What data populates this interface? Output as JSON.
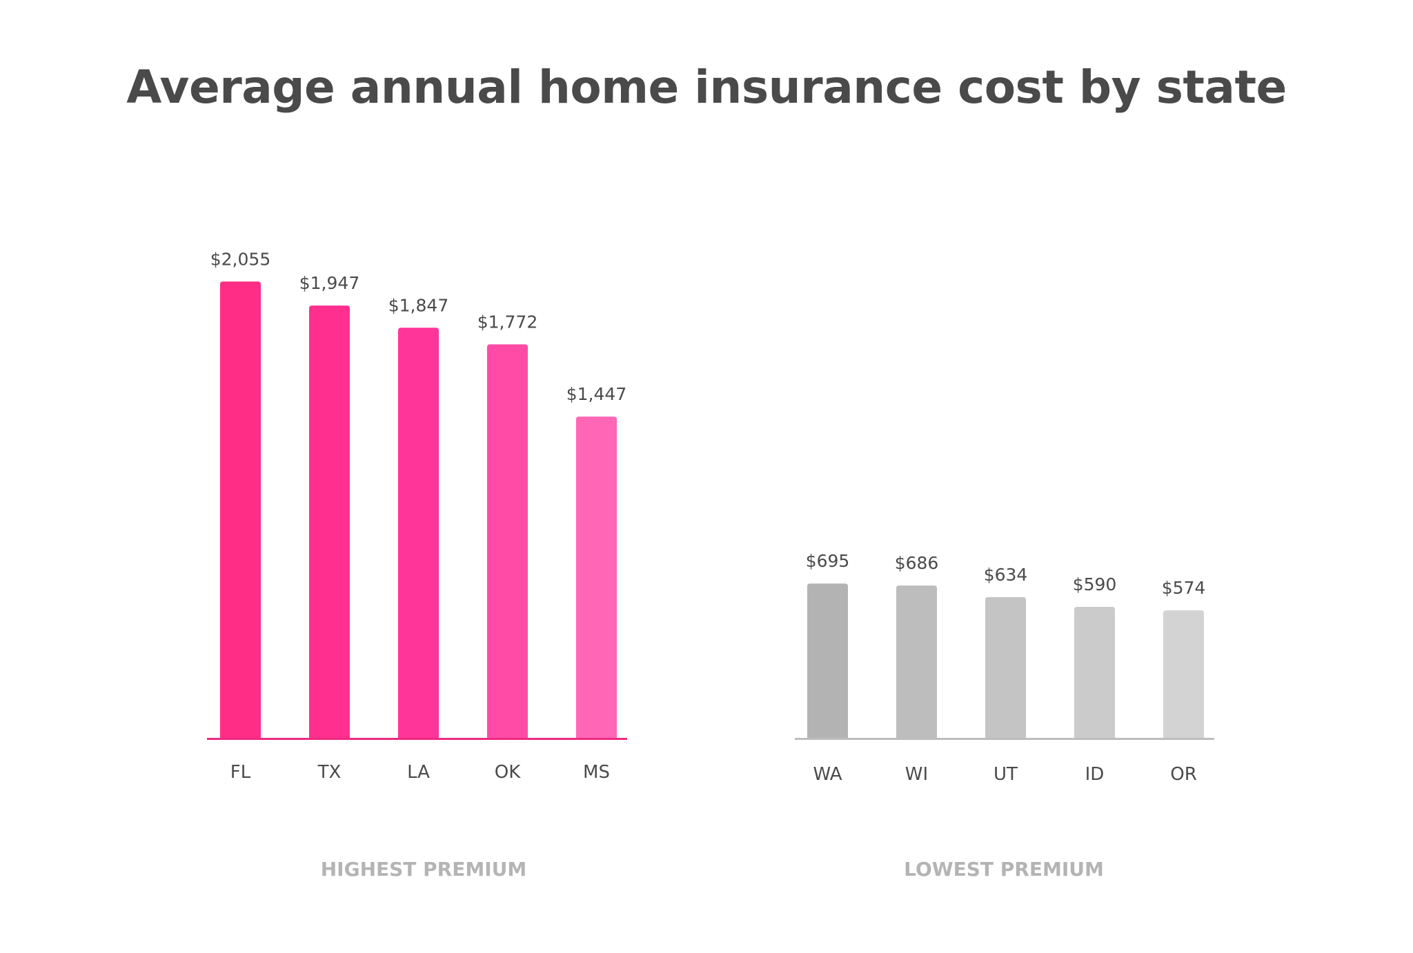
{
  "chart_data": [
    {
      "type": "bar",
      "title": "Average annual home insurance cost by state",
      "subtitle": "HIGHEST PREMIUM",
      "categories": [
        "FL",
        "TX",
        "LA",
        "OK",
        "MS"
      ],
      "values": [
        2055,
        1947,
        1847,
        1772,
        1447
      ],
      "data_labels": [
        "$2,055",
        "$1,947",
        "$1,847",
        "$1,772",
        "$1,447"
      ],
      "colors": [
        "#ff2d85",
        "#ff2f8f",
        "#ff3599",
        "#ff4ba6",
        "#ff66b6"
      ],
      "axis_color": "#ee2a80",
      "xlabel": "",
      "ylabel": "",
      "ylim": [
        0,
        2055
      ],
      "grid": false
    },
    {
      "type": "bar",
      "title": "Average annual home insurance cost by state",
      "subtitle": "LOWEST PREMIUM",
      "categories": [
        "WA",
        "WI",
        "UT",
        "ID",
        "OR"
      ],
      "values": [
        695,
        686,
        634,
        590,
        574
      ],
      "data_labels": [
        "$695",
        "$686",
        "$634",
        "$590",
        "$574"
      ],
      "colors": [
        "#b3b3b3",
        "#bdbdbd",
        "#c4c4c4",
        "#cbcbcb",
        "#d3d3d3"
      ],
      "axis_color": "#bdbdbd",
      "xlabel": "",
      "ylabel": "",
      "ylim": [
        0,
        2055
      ],
      "grid": false
    }
  ],
  "header": {
    "title": "Average annual home insurance cost by state"
  }
}
